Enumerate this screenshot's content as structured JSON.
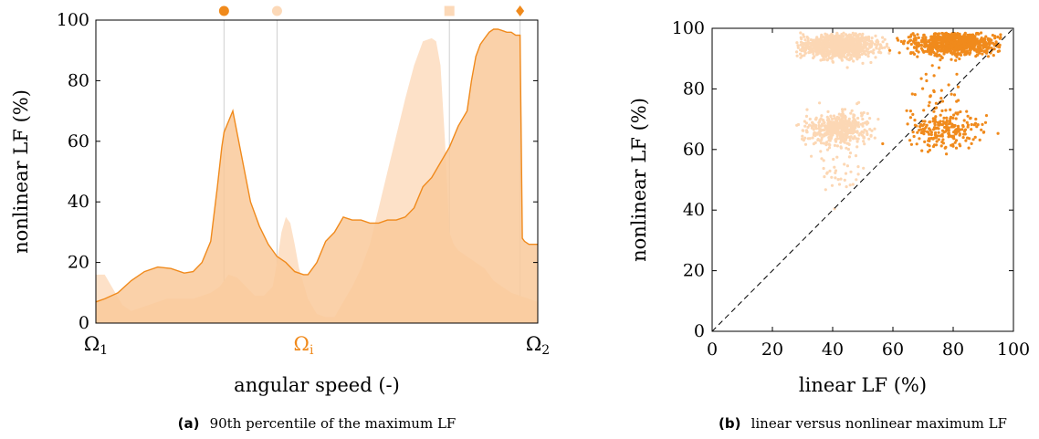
{
  "chart_data": [
    {
      "type": "area",
      "panel_label": "(a)",
      "caption": "90th percentile of the maximum LF",
      "xlabel": "angular speed (-)",
      "ylabel": "nonlinear LF (%)",
      "ylim": [
        0,
        100
      ],
      "yticks": [
        0,
        20,
        40,
        60,
        80,
        100
      ],
      "xlim": [
        0,
        1
      ],
      "xtick_labels": [
        {
          "x": 0.0,
          "label": "Ω",
          "sub": "1",
          "color": "#000000"
        },
        {
          "x": 0.47,
          "label": "Ω",
          "sub": "i",
          "color": "#f08a1c"
        },
        {
          "x": 1.0,
          "label": "Ω",
          "sub": "2",
          "color": "#000000"
        }
      ],
      "grid": false,
      "colors": {
        "dark": "#f08a1c",
        "light": "#fde1c8",
        "mid": "#f9c99a"
      },
      "markers": [
        {
          "x": 0.29,
          "shape": "circle",
          "color": "#f08a1c"
        },
        {
          "x": 0.41,
          "shape": "circle",
          "color": "#fcd9b8"
        },
        {
          "x": 0.8,
          "shape": "square",
          "color": "#fcd9b8"
        },
        {
          "x": 0.96,
          "shape": "diamond",
          "color": "#f08a1c"
        }
      ],
      "series": [
        {
          "x": [
            0.0,
            0.02,
            0.05,
            0.08,
            0.11,
            0.14,
            0.17,
            0.2,
            0.22,
            0.24,
            0.26,
            0.275,
            0.285,
            0.29,
            0.31,
            0.33,
            0.35,
            0.37,
            0.39,
            0.41,
            0.43,
            0.45,
            0.47,
            0.48,
            0.5,
            0.52,
            0.54,
            0.56,
            0.58,
            0.6,
            0.62,
            0.64,
            0.66,
            0.68,
            0.7,
            0.72,
            0.74,
            0.76,
            0.78,
            0.8,
            0.82,
            0.84,
            0.85,
            0.86,
            0.87,
            0.88,
            0.89,
            0.9,
            0.91,
            0.92,
            0.93,
            0.94,
            0.95,
            0.96,
            0.965,
            0.97,
            0.98,
            1.0
          ],
          "values": [
            7,
            8,
            10,
            14,
            17,
            18.5,
            18,
            16.5,
            17,
            20,
            27,
            45,
            58,
            63,
            70,
            55,
            40,
            32,
            26,
            22,
            20,
            17,
            16,
            16,
            20,
            27,
            30,
            35,
            34,
            34,
            33,
            33,
            34,
            34,
            35,
            38,
            45,
            48,
            53,
            58,
            65,
            70,
            80,
            88,
            92,
            94,
            96,
            97,
            97,
            96.5,
            96,
            96,
            95,
            95,
            28,
            27,
            26,
            26
          ]
        },
        {
          "x": [
            0.0,
            0.02,
            0.04,
            0.06,
            0.08,
            0.1,
            0.12,
            0.14,
            0.16,
            0.18,
            0.2,
            0.22,
            0.24,
            0.26,
            0.28,
            0.3,
            0.32,
            0.34,
            0.36,
            0.38,
            0.4,
            0.41,
            0.42,
            0.43,
            0.44,
            0.45,
            0.46,
            0.48,
            0.5,
            0.52,
            0.54,
            0.56,
            0.58,
            0.6,
            0.62,
            0.64,
            0.66,
            0.68,
            0.7,
            0.72,
            0.74,
            0.76,
            0.77,
            0.78,
            0.79,
            0.8,
            0.81,
            0.82,
            0.84,
            0.86,
            0.88,
            0.9,
            0.92,
            0.94,
            0.96,
            0.98,
            1.0
          ],
          "values": [
            16,
            16,
            11,
            6,
            4,
            5,
            6,
            7,
            8,
            8,
            8,
            8,
            9,
            10,
            12,
            16,
            15,
            12,
            9,
            9,
            12,
            20,
            30,
            35,
            33,
            26,
            18,
            8,
            3,
            2,
            2,
            7,
            12,
            18,
            26,
            38,
            50,
            62,
            74,
            85,
            93,
            94,
            93,
            85,
            60,
            30,
            26,
            24,
            22,
            20,
            18,
            14,
            12,
            10,
            9,
            8,
            7
          ]
        }
      ]
    },
    {
      "type": "scatter",
      "panel_label": "(b)",
      "caption": "linear versus nonlinear maximum LF",
      "xlabel": "linear LF (%)",
      "ylabel": "nonlinear LF (%)",
      "xlim": [
        0,
        100
      ],
      "ylim": [
        0,
        100
      ],
      "xticks": [
        0,
        20,
        40,
        60,
        80,
        100
      ],
      "yticks": [
        0,
        20,
        40,
        60,
        80,
        100
      ],
      "grid": false,
      "reference_line": {
        "from": [
          0,
          0
        ],
        "to": [
          100,
          100
        ],
        "style": "dashed"
      },
      "colors": {
        "dark": "#f08a1c",
        "light": "#fcd7b4"
      },
      "clusters": [
        {
          "color": "light",
          "center": [
            42,
            94
          ],
          "spread": [
            6,
            2.0
          ],
          "n": 900
        },
        {
          "color": "light",
          "center": [
            42,
            67
          ],
          "spread": [
            5,
            2.5
          ],
          "n": 450
        },
        {
          "color": "light",
          "center": [
            42,
            53
          ],
          "spread": [
            4,
            4
          ],
          "n": 40
        },
        {
          "color": "dark",
          "center": [
            80,
            95
          ],
          "spread": [
            7,
            2.0
          ],
          "n": 750
        },
        {
          "color": "dark",
          "center": [
            77,
            67
          ],
          "spread": [
            6,
            3
          ],
          "n": 220
        },
        {
          "color": "dark",
          "center": [
            74,
            79
          ],
          "spread": [
            5,
            4
          ],
          "n": 30
        }
      ]
    }
  ]
}
